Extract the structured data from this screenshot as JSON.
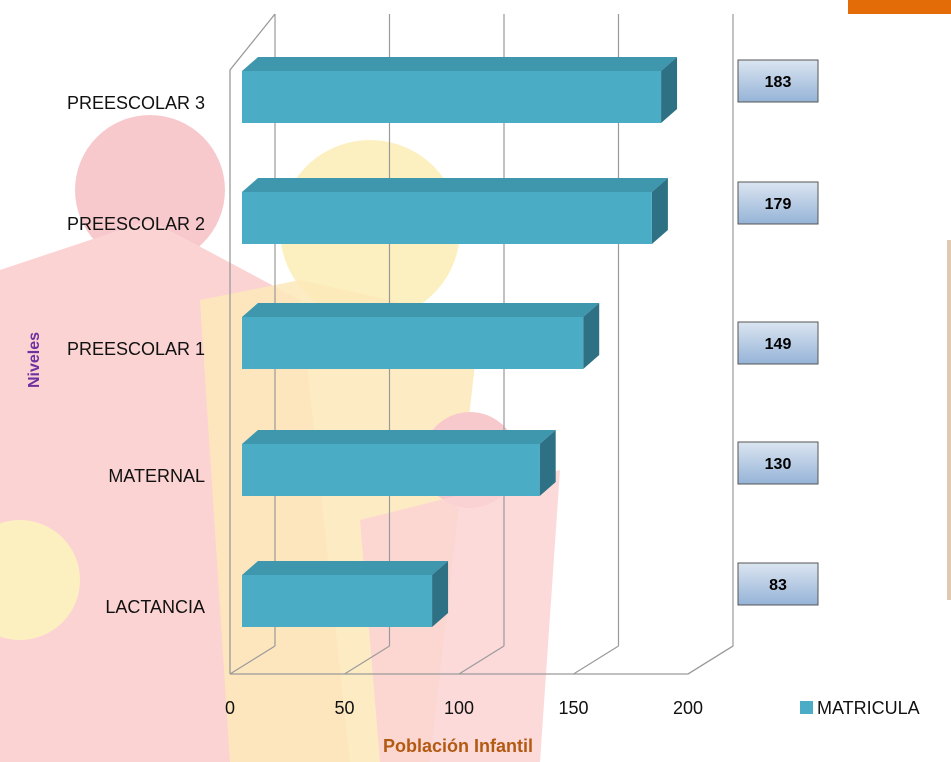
{
  "colors": {
    "bar_front": "#4bacc6",
    "bar_top": "#3f97ae",
    "bar_side": "#2e7184",
    "label_box_top": "#dbe5f1",
    "label_box_bottom": "#95b3d7",
    "axis_title": "#b35a12",
    "ylabel": "#7030a0",
    "corner_accent": "#e36c09"
  },
  "chart_data": {
    "type": "bar",
    "orientation": "horizontal",
    "three_d": true,
    "categories": [
      "LACTANCIA",
      "MATERNAL",
      "PREESCOLAR 1",
      "PREESCOLAR 2",
      "PREESCOLAR 3"
    ],
    "series": [
      {
        "name": "MATRICULA",
        "values": [
          83,
          130,
          149,
          179,
          183
        ]
      }
    ],
    "data_labels": [
      "83",
      "130",
      "149",
      "179",
      "183"
    ],
    "xlabel": "Población Infantil",
    "ylabel": "Niveles",
    "xlim": [
      0,
      200
    ],
    "xticks": [
      0,
      50,
      100,
      150,
      200
    ],
    "xtick_labels": [
      "0",
      "50",
      "100",
      "150",
      "200"
    ],
    "grid": true,
    "legend": {
      "position": "bottom-right",
      "entries": [
        "MATRICULA"
      ]
    }
  }
}
